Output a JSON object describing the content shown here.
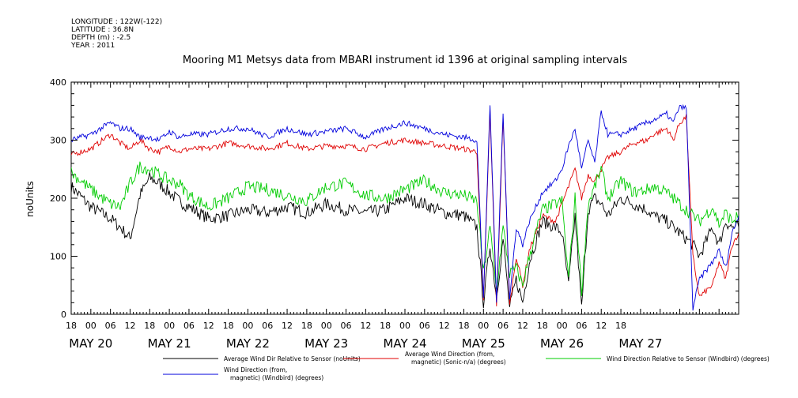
{
  "header": {
    "meta_lines": [
      "LONGITUDE : 122W(-122)",
      "LATITUDE : 36.8N",
      "DEPTH (m) : -2.5",
      "YEAR : 2011"
    ],
    "title": "Mooring M1 Metsys data from MBARI instrument id 1396 at original sampling intervals"
  },
  "chart_data": {
    "type": "line",
    "title": "Mooring M1 Metsys data from MBARI instrument id 1396 at original sampling intervals",
    "xlabel": "",
    "ylabel": "noUnits",
    "ylim": [
      0,
      400
    ],
    "yticks": [
      0,
      100,
      200,
      300,
      400
    ],
    "xlim_hours": [
      0,
      204
    ],
    "x_tick_labels": [
      "18",
      "00",
      "06",
      "12",
      "18",
      "00",
      "06",
      "12",
      "18",
      "00",
      "06",
      "12",
      "18",
      "00",
      "06",
      "12",
      "18",
      "00",
      "06",
      "12",
      "18",
      "00",
      "06",
      "12",
      "18",
      "00",
      "06",
      "12",
      "18"
    ],
    "date_labels": [
      {
        "label": "MAY 20",
        "hour": 6
      },
      {
        "label": "MAY 21",
        "hour": 30
      },
      {
        "label": "MAY 22",
        "hour": 54
      },
      {
        "label": "MAY 23",
        "hour": 78
      },
      {
        "label": "MAY 24",
        "hour": 102
      },
      {
        "label": "MAY 25",
        "hour": 126
      },
      {
        "label": "MAY 26",
        "hour": 150
      },
      {
        "label": "MAY 27",
        "hour": 174
      }
    ],
    "grid": false,
    "legend_position": "bottom",
    "series": [
      {
        "name": "Average Wind Dir Relative to Sensor (noUnits)",
        "color": "#000000",
        "x": [
          0,
          6,
          12,
          15,
          18,
          21,
          24,
          27,
          30,
          33,
          36,
          42,
          48,
          54,
          60,
          66,
          72,
          78,
          84,
          90,
          96,
          102,
          108,
          114,
          120,
          124,
          126,
          128,
          130,
          132,
          134,
          136,
          138,
          140,
          144,
          148,
          150,
          152,
          154,
          156,
          158,
          160,
          162,
          164,
          168,
          172,
          176,
          178,
          180,
          182,
          184,
          186,
          188,
          190,
          192,
          196,
          198,
          200,
          202,
          204
        ],
        "y": [
          220,
          185,
          165,
          150,
          130,
          205,
          235,
          225,
          210,
          195,
          185,
          165,
          170,
          180,
          175,
          185,
          175,
          190,
          180,
          175,
          180,
          200,
          190,
          175,
          170,
          150,
          20,
          120,
          30,
          130,
          10,
          60,
          20,
          90,
          160,
          150,
          140,
          50,
          170,
          10,
          180,
          200,
          190,
          170,
          200,
          190,
          180,
          170,
          165,
          160,
          150,
          140,
          130,
          120,
          100,
          150,
          120,
          160,
          150,
          150
        ]
      },
      {
        "name": "Average Wind Direction (from, magnetic) (Sonic-n/a) (degrees)",
        "color": "#e00000",
        "x": [
          0,
          6,
          12,
          15,
          18,
          21,
          24,
          27,
          30,
          33,
          36,
          42,
          48,
          54,
          60,
          66,
          72,
          78,
          84,
          90,
          96,
          102,
          108,
          114,
          120,
          124,
          126,
          128,
          130,
          132,
          134,
          136,
          138,
          140,
          144,
          148,
          150,
          152,
          154,
          156,
          158,
          160,
          162,
          164,
          168,
          172,
          176,
          178,
          180,
          182,
          184,
          186,
          188,
          190,
          192,
          196,
          198,
          200,
          202,
          204
        ],
        "y": [
          275,
          285,
          310,
          295,
          285,
          300,
          285,
          280,
          290,
          280,
          285,
          285,
          295,
          290,
          285,
          295,
          285,
          290,
          290,
          285,
          295,
          300,
          295,
          290,
          285,
          280,
          20,
          350,
          10,
          340,
          15,
          100,
          50,
          110,
          170,
          160,
          190,
          220,
          250,
          200,
          240,
          230,
          250,
          270,
          280,
          295,
          300,
          310,
          315,
          320,
          300,
          330,
          340,
          100,
          30,
          50,
          90,
          60,
          120,
          140
        ]
      },
      {
        "name": "Wind Direction Relative to Sensor (Windbird) (degrees)",
        "color": "#00cc00",
        "x": [
          0,
          6,
          12,
          15,
          18,
          21,
          24,
          27,
          30,
          33,
          36,
          42,
          48,
          54,
          60,
          66,
          72,
          78,
          84,
          90,
          96,
          102,
          108,
          114,
          120,
          124,
          126,
          128,
          130,
          132,
          134,
          136,
          138,
          140,
          144,
          148,
          150,
          152,
          154,
          156,
          158,
          160,
          162,
          164,
          168,
          172,
          176,
          178,
          180,
          182,
          184,
          186,
          188,
          190,
          192,
          196,
          198,
          200,
          202,
          204
        ],
        "y": [
          245,
          215,
          190,
          185,
          225,
          255,
          250,
          240,
          230,
          225,
          205,
          185,
          200,
          220,
          215,
          205,
          195,
          220,
          225,
          205,
          200,
          215,
          230,
          210,
          205,
          195,
          70,
          150,
          40,
          150,
          70,
          80,
          50,
          100,
          180,
          190,
          195,
          60,
          200,
          40,
          190,
          220,
          250,
          200,
          230,
          210,
          215,
          220,
          215,
          210,
          200,
          190,
          180,
          170,
          160,
          185,
          155,
          175,
          160,
          170
        ]
      },
      {
        "name": "Wind Direction (from, magnetic) (Windbird) (degrees)",
        "color": "#0000dd",
        "x": [
          0,
          6,
          12,
          15,
          18,
          21,
          24,
          27,
          30,
          33,
          36,
          42,
          48,
          54,
          60,
          66,
          72,
          78,
          84,
          90,
          96,
          102,
          108,
          114,
          120,
          124,
          126,
          128,
          130,
          132,
          134,
          136,
          138,
          140,
          144,
          148,
          150,
          152,
          154,
          156,
          158,
          160,
          162,
          164,
          168,
          172,
          176,
          178,
          180,
          182,
          184,
          186,
          188,
          190,
          192,
          196,
          198,
          200,
          202,
          204
        ],
        "y": [
          300,
          310,
          330,
          320,
          320,
          305,
          305,
          300,
          315,
          305,
          310,
          310,
          320,
          320,
          305,
          320,
          310,
          315,
          320,
          305,
          320,
          330,
          320,
          310,
          305,
          300,
          30,
          360,
          20,
          350,
          25,
          150,
          120,
          160,
          210,
          230,
          250,
          290,
          320,
          250,
          300,
          260,
          350,
          310,
          310,
          320,
          330,
          335,
          340,
          345,
          330,
          360,
          355,
          10,
          60,
          90,
          110,
          80,
          140,
          170
        ]
      }
    ]
  },
  "legend": {
    "items": [
      {
        "line1": "Average Wind Dir Relative to Sensor (noUnits)",
        "line2": "",
        "color": "#000000"
      },
      {
        "line1": "Average Wind Direction (from,",
        "line2": "magnetic) (Sonic-n/a) (degrees)",
        "color": "#e00000"
      },
      {
        "line1": "Wind Direction Relative to Sensor (Windbird) (degrees)",
        "line2": "",
        "color": "#00cc00"
      },
      {
        "line1": "Wind Direction (from,",
        "line2": "magnetic) (Windbird) (degrees)",
        "color": "#0000dd"
      }
    ]
  }
}
